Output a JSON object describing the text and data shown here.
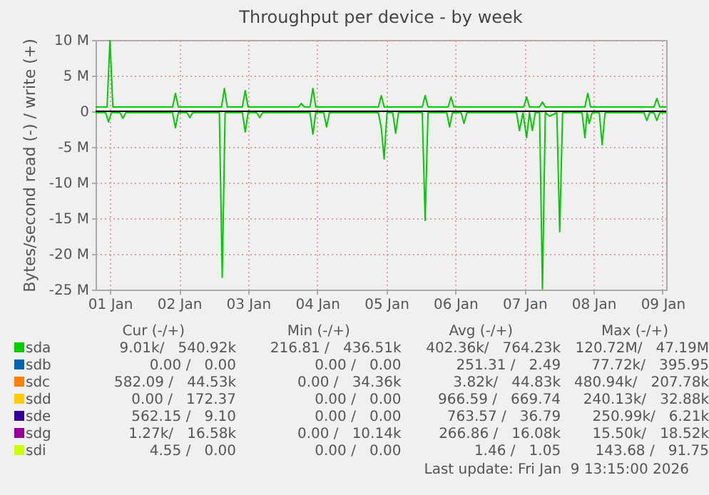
{
  "chart_data": {
    "type": "line",
    "title": "Throughput per device - by week",
    "ylabel": "Bytes/second read (-) / write (+)",
    "xlim": [
      "2026-01-01T07:00",
      "2026-01-09T13:15"
    ],
    "xticks": [
      {
        "value": "2026-01-01T12:00",
        "label": "01 Jan"
      },
      {
        "value": "2026-01-02T12:00",
        "label": "02 Jan"
      },
      {
        "value": "2026-01-03T12:00",
        "label": "03 Jan"
      },
      {
        "value": "2026-01-04T12:00",
        "label": "04 Jan"
      },
      {
        "value": "2026-01-05T12:00",
        "label": "05 Jan"
      },
      {
        "value": "2026-01-06T12:00",
        "label": "06 Jan"
      },
      {
        "value": "2026-01-07T12:00",
        "label": "07 Jan"
      },
      {
        "value": "2026-01-08T12:00",
        "label": "08 Jan"
      },
      {
        "value": "2026-01-09T12:00",
        "label": "09 Jan"
      }
    ],
    "ylim": [
      -25,
      10
    ],
    "yticks": [
      {
        "value": -25,
        "label": "-25 M"
      },
      {
        "value": -20,
        "label": "-20 M"
      },
      {
        "value": -15,
        "label": "-15 M"
      },
      {
        "value": -10,
        "label": "-10 M"
      },
      {
        "value": -5,
        "label": "-5 M"
      },
      0,
      {
        "value": 5,
        "label": "5 M"
      },
      {
        "value": 10,
        "label": "10 M"
      }
    ],
    "grid": true,
    "legend": "bottom",
    "ref_lines": [
      {
        "axis": "y",
        "value": 0,
        "color": "#000000"
      }
    ],
    "series": [
      {
        "name": "sda",
        "color": "#00cc00",
        "x": [
          "2026-01-01T07:00",
          "2026-01-01T11:00",
          "2026-01-01T12:00",
          "2026-01-01T13:00",
          "2026-01-02T09:45",
          "2026-01-02T10:45",
          "2026-01-02T11:45",
          "2026-01-03T02:45",
          "2026-01-03T03:45",
          "2026-01-03T04:45",
          "2026-01-03T10:00",
          "2026-01-03T11:00",
          "2026-01-03T12:00",
          "2026-01-04T05:30",
          "2026-01-04T06:30",
          "2026-01-04T07:30",
          "2026-01-04T09:30",
          "2026-01-04T10:30",
          "2026-01-04T11:30",
          "2026-01-05T09:15",
          "2026-01-05T10:15",
          "2026-01-05T11:15",
          "2026-01-06T00:30",
          "2026-01-06T01:30",
          "2026-01-06T02:30",
          "2026-01-06T09:30",
          "2026-01-06T10:30",
          "2026-01-06T11:30",
          "2026-01-07T11:45",
          "2026-01-07T12:45",
          "2026-01-07T13:45",
          "2026-01-07T17:15",
          "2026-01-07T18:15",
          "2026-01-07T19:15",
          "2026-01-08T09:00",
          "2026-01-08T10:00",
          "2026-01-08T11:00",
          "2026-01-09T09:00",
          "2026-01-09T10:00",
          "2026-01-09T11:00",
          "2026-01-09T13:15"
        ],
        "values": [
          0.6,
          0.6,
          10,
          0.6,
          0.6,
          2.5,
          0.6,
          0.6,
          3.2,
          0.6,
          0.6,
          2.9,
          0.6,
          0.6,
          1.1,
          0.6,
          0.6,
          3.2,
          0.6,
          0.6,
          2.2,
          0.6,
          0.6,
          2.2,
          0.6,
          0.6,
          2.0,
          0.6,
          0.6,
          2.0,
          0.6,
          0.6,
          1.3,
          0.6,
          0.6,
          2.5,
          0.6,
          0.6,
          1.8,
          0.6,
          0.6
        ]
      },
      {
        "name": "sdb",
        "color": "#0066b3"
      },
      {
        "name": "sdc",
        "color": "#ff8000"
      },
      {
        "name": "sdd",
        "color": "#ffcc00"
      },
      {
        "name": "sde",
        "color": "#330099"
      },
      {
        "name": "sdg",
        "color": "#990099"
      },
      {
        "name": "sdi",
        "color": "#ccff00"
      },
      {
        "color": "#00cc00",
        "x": [
          "2026-01-01T07:00",
          "2026-01-01T10:30",
          "2026-01-01T11:30",
          "2026-01-01T12:30",
          "2026-01-01T15:30",
          "2026-01-01T16:30",
          "2026-01-01T17:30",
          "2026-01-02T09:45",
          "2026-01-02T10:45",
          "2026-01-02T11:45",
          "2026-01-02T14:45",
          "2026-01-02T15:45",
          "2026-01-02T16:45",
          "2026-01-03T02:00",
          "2026-01-03T03:00",
          "2026-01-03T04:00",
          "2026-01-03T10:00",
          "2026-01-03T11:00",
          "2026-01-03T12:00",
          "2026-01-03T15:00",
          "2026-01-03T16:00",
          "2026-01-03T17:00",
          "2026-01-04T09:30",
          "2026-01-04T10:30",
          "2026-01-04T11:30",
          "2026-01-04T14:15",
          "2026-01-04T15:15",
          "2026-01-04T16:15",
          "2026-01-05T09:15",
          "2026-01-05T10:15",
          "2026-01-05T11:15",
          "2026-01-05T12:15",
          "2026-01-05T14:15",
          "2026-01-05T15:15",
          "2026-01-05T16:15",
          "2026-01-06T00:30",
          "2026-01-06T01:30",
          "2026-01-06T02:30",
          "2026-01-06T09:00",
          "2026-01-06T10:00",
          "2026-01-06T11:00",
          "2026-01-06T14:00",
          "2026-01-06T15:00",
          "2026-01-06T16:00",
          "2026-01-07T09:15",
          "2026-01-07T10:15",
          "2026-01-07T11:30",
          "2026-01-07T12:45",
          "2026-01-07T13:45",
          "2026-01-07T14:45",
          "2026-01-07T15:45",
          "2026-01-07T17:15",
          "2026-01-07T18:15",
          "2026-01-07T19:15",
          "2026-01-07T20:45",
          "2026-01-07T23:15",
          "2026-01-08T00:15",
          "2026-01-08T01:15",
          "2026-01-08T08:00",
          "2026-01-08T09:00",
          "2026-01-08T09:45",
          "2026-01-08T10:30",
          "2026-01-08T11:30",
          "2026-01-08T14:00",
          "2026-01-08T15:00",
          "2026-01-08T16:00",
          "2026-01-09T05:30",
          "2026-01-09T06:30",
          "2026-01-09T07:30",
          "2026-01-09T09:00",
          "2026-01-09T10:00",
          "2026-01-09T11:00",
          "2026-01-09T13:15"
        ],
        "values": [
          -0.2,
          -0.2,
          -1.5,
          -0.2,
          -0.2,
          -1.0,
          -0.2,
          -0.2,
          -2.3,
          -0.2,
          -0.2,
          -0.9,
          -0.2,
          -0.2,
          -23.3,
          -0.2,
          -0.2,
          -2.9,
          -0.2,
          -0.2,
          -0.9,
          -0.2,
          -0.2,
          -3.2,
          -0.2,
          -0.2,
          -2.2,
          -0.2,
          -0.2,
          -2.3,
          -6.7,
          -0.2,
          -0.2,
          -3.1,
          -0.2,
          -0.2,
          -15.3,
          -0.2,
          -0.2,
          -2.2,
          -0.2,
          -0.2,
          -1.7,
          -0.2,
          -0.2,
          -2.7,
          -0.2,
          -3.7,
          -0.2,
          -2.7,
          -0.2,
          -0.2,
          -24.9,
          -0.2,
          -0.7,
          -0.2,
          -16.9,
          -0.2,
          -0.2,
          -3.7,
          -0.2,
          -1.7,
          -0.2,
          -0.2,
          -4.7,
          -0.2,
          -0.2,
          -1.3,
          -0.2,
          -0.2,
          -1.3,
          -0.2,
          -0.2
        ]
      }
    ],
    "annotations": [
      "Cur (-/+)",
      "Min (-/+)",
      "Avg (-/+)",
      "Max (-/+)",
      "9.01k/   540.92k",
      "216.81 /   436.51k",
      "402.36k/   764.23k",
      "120.72M/   47.19M",
      "0.00 /   0.00",
      "0.00 /   0.00",
      "251.31 /   2.49",
      "77.72k/   395.95",
      "582.09 /   44.53k",
      "0.00 /   34.36k",
      "3.82k/   44.83k",
      "480.94k/   207.78k",
      "0.00 /   172.37",
      "0.00 /   0.00",
      "966.59 /   669.74",
      "240.13k/   32.88k",
      "562.15 /   9.10",
      "0.00 /   0.00",
      "763.57 /   36.79",
      "250.99k/   6.21k",
      "1.27k/   16.58k",
      "0.00 /   10.14k",
      "266.86 /   16.08k",
      "15.50k/   18.52k",
      "4.55 /   0.00",
      "0.00 /   0.00",
      "1.46 /   1.05",
      "143.68 /   91.75",
      "Last update: Fri Jan  9 13:15:00 2026"
    ]
  }
}
